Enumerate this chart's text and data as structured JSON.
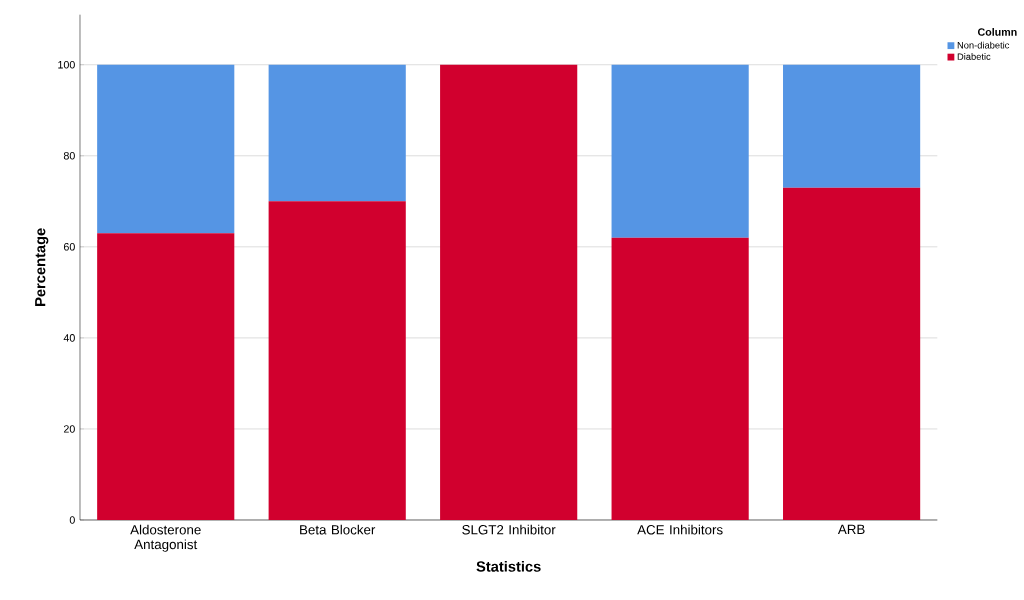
{
  "chart_data": {
    "type": "bar",
    "stacked": true,
    "xlabel": "Statistics",
    "ylabel": "Percentage",
    "legend_title": "Column",
    "categories": [
      "Aldosterone Antagonist",
      "Beta Blocker",
      "SLGT2 Inhibitor",
      "ACE Inhibitors",
      "ARB"
    ],
    "series": [
      {
        "name": "Diabetic",
        "color": "#d1002e",
        "values": [
          63,
          70,
          100,
          62,
          73
        ]
      },
      {
        "name": "Non-diabetic",
        "color": "#5595e4",
        "values": [
          37,
          30,
          0,
          38,
          27
        ]
      }
    ],
    "ylim": [
      0,
      111
    ],
    "yticks": [
      0,
      20,
      40,
      60,
      80,
      100
    ],
    "grid": "y",
    "legend": "top right"
  }
}
